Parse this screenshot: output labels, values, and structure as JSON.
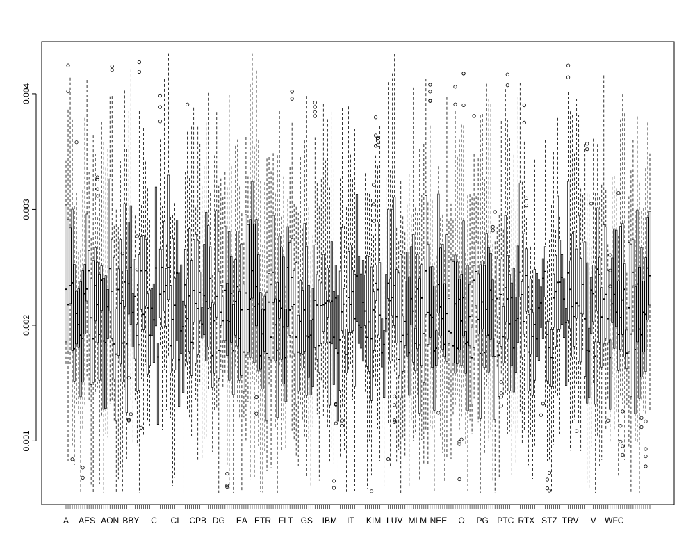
{
  "chart_data": {
    "type": "box",
    "title": "",
    "xlabel": "",
    "ylabel": "",
    "ylim": [
      0.00045,
      0.00445
    ],
    "y_ticks": [
      0.001,
      0.002,
      0.003,
      0.004
    ],
    "y_tick_labels": [
      "0.001",
      "0.002",
      "0.003",
      "0.004"
    ],
    "x_tick_labels": [
      "A",
      "AES",
      "AON",
      "BBY",
      "C",
      "CI",
      "CPB",
      "DG",
      "EA",
      "ETR",
      "FLT",
      "GS",
      "IBM",
      "IT",
      "KIM",
      "LUV",
      "MLM",
      "NEE",
      "O",
      "PG",
      "PTC",
      "RTX",
      "STZ",
      "TRV",
      "V",
      "WFC"
    ],
    "n_boxes": 280,
    "median_center": 0.0021,
    "typical_iqr": [
      0.0018,
      0.0025
    ],
    "whisker_range": [
      0.0005,
      0.0044
    ],
    "grid": false,
    "legend": "none"
  }
}
